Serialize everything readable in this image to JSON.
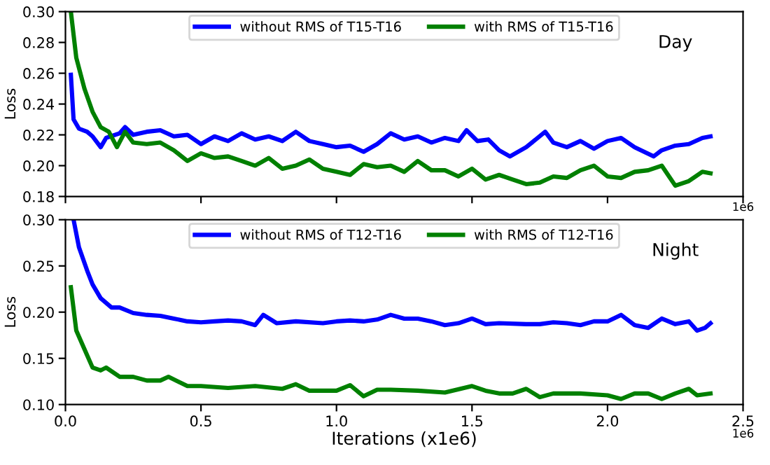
{
  "chart_data": [
    {
      "type": "line",
      "ylabel": "Loss",
      "annotations": [
        "Day",
        "1e6"
      ],
      "legend": "top",
      "tick_labels": "y",
      "grid": false,
      "xlim": [
        0,
        2.5
      ],
      "xticks": [
        {
          "value": 0,
          "label": null
        },
        {
          "value": 0.5,
          "label": null
        },
        {
          "value": 1,
          "label": null
        },
        {
          "value": 1.5,
          "label": null
        },
        {
          "value": 2,
          "label": null
        },
        {
          "value": 2.5,
          "label": null
        }
      ],
      "ylim": [
        0.18,
        0.3
      ],
      "yticks": [
        {
          "value": 0.18,
          "label": "0.18"
        },
        {
          "value": 0.2,
          "label": "0.20"
        },
        {
          "value": 0.22,
          "label": "0.22"
        },
        {
          "value": 0.24,
          "label": "0.24"
        },
        {
          "value": 0.26,
          "label": "0.26"
        },
        {
          "value": 0.28,
          "label": "0.28"
        },
        {
          "value": 0.3,
          "label": "0.30"
        }
      ],
      "series": [
        {
          "name": "without RMS of T15-T16",
          "color": "#0000ff",
          "x": [
            0.02,
            0.03,
            0.05,
            0.08,
            0.1,
            0.13,
            0.15,
            0.2,
            0.22,
            0.25,
            0.3,
            0.35,
            0.4,
            0.45,
            0.5,
            0.55,
            0.6,
            0.65,
            0.7,
            0.75,
            0.8,
            0.85,
            0.9,
            0.95,
            1.0,
            1.05,
            1.1,
            1.15,
            1.2,
            1.25,
            1.3,
            1.35,
            1.4,
            1.45,
            1.48,
            1.52,
            1.56,
            1.6,
            1.64,
            1.7,
            1.77,
            1.8,
            1.85,
            1.9,
            1.95,
            2.0,
            2.05,
            2.1,
            2.17,
            2.2,
            2.25,
            2.3,
            2.35,
            2.38
          ],
          "values": [
            0.259,
            0.23,
            0.224,
            0.222,
            0.219,
            0.212,
            0.218,
            0.221,
            0.225,
            0.22,
            0.222,
            0.223,
            0.219,
            0.22,
            0.214,
            0.219,
            0.216,
            0.221,
            0.217,
            0.219,
            0.216,
            0.222,
            0.216,
            0.214,
            0.212,
            0.213,
            0.209,
            0.214,
            0.221,
            0.217,
            0.219,
            0.215,
            0.218,
            0.216,
            0.223,
            0.216,
            0.217,
            0.21,
            0.206,
            0.212,
            0.222,
            0.215,
            0.212,
            0.216,
            0.211,
            0.216,
            0.218,
            0.212,
            0.206,
            0.21,
            0.213,
            0.214,
            0.218,
            0.219
          ]
        },
        {
          "name": "with RMS of T15-T16",
          "color": "#008000",
          "x": [
            0.02,
            0.04,
            0.07,
            0.1,
            0.13,
            0.16,
            0.19,
            0.22,
            0.25,
            0.3,
            0.35,
            0.4,
            0.45,
            0.5,
            0.55,
            0.6,
            0.65,
            0.7,
            0.75,
            0.8,
            0.85,
            0.9,
            0.95,
            1.0,
            1.05,
            1.1,
            1.15,
            1.2,
            1.25,
            1.3,
            1.35,
            1.4,
            1.45,
            1.5,
            1.55,
            1.6,
            1.65,
            1.7,
            1.75,
            1.8,
            1.85,
            1.9,
            1.95,
            2.0,
            2.05,
            2.1,
            2.15,
            2.2,
            2.25,
            2.3,
            2.35,
            2.38
          ],
          "values": [
            0.3,
            0.27,
            0.25,
            0.235,
            0.225,
            0.222,
            0.212,
            0.222,
            0.215,
            0.214,
            0.215,
            0.21,
            0.203,
            0.208,
            0.205,
            0.206,
            0.203,
            0.2,
            0.205,
            0.198,
            0.2,
            0.204,
            0.198,
            0.196,
            0.194,
            0.201,
            0.199,
            0.2,
            0.196,
            0.203,
            0.197,
            0.197,
            0.193,
            0.198,
            0.191,
            0.194,
            0.191,
            0.188,
            0.189,
            0.193,
            0.192,
            0.197,
            0.2,
            0.193,
            0.192,
            0.196,
            0.197,
            0.2,
            0.187,
            0.19,
            0.196,
            0.195
          ]
        }
      ]
    },
    {
      "type": "line",
      "xlabel": "Iterations (x1e6)",
      "ylabel": "Loss",
      "annotations": [
        "Night",
        "1e6"
      ],
      "legend": "top",
      "grid": false,
      "xlim": [
        0,
        2.5
      ],
      "xticks": [
        {
          "value": 0,
          "label": "0.0"
        },
        {
          "value": 0.5,
          "label": "0.5"
        },
        {
          "value": 1,
          "label": "1.0"
        },
        {
          "value": 1.5,
          "label": "1.5"
        },
        {
          "value": 2,
          "label": "2.0"
        },
        {
          "value": 2.5,
          "label": "2.5"
        }
      ],
      "ylim": [
        0.1,
        0.3
      ],
      "yticks": [
        {
          "value": 0.1,
          "label": "0.10"
        },
        {
          "value": 0.15,
          "label": "0.15"
        },
        {
          "value": 0.2,
          "label": "0.20"
        },
        {
          "value": 0.25,
          "label": "0.25"
        },
        {
          "value": 0.3,
          "label": "0.30"
        }
      ],
      "series": [
        {
          "name": "without RMS of T12-T16",
          "color": "#0000ff",
          "x": [
            0.03,
            0.05,
            0.08,
            0.1,
            0.13,
            0.17,
            0.2,
            0.25,
            0.3,
            0.35,
            0.4,
            0.45,
            0.5,
            0.55,
            0.6,
            0.65,
            0.7,
            0.73,
            0.78,
            0.85,
            0.95,
            1.0,
            1.05,
            1.1,
            1.15,
            1.2,
            1.25,
            1.3,
            1.35,
            1.4,
            1.45,
            1.5,
            1.55,
            1.6,
            1.7,
            1.75,
            1.8,
            1.85,
            1.9,
            1.95,
            2.0,
            2.05,
            2.1,
            2.15,
            2.2,
            2.25,
            2.3,
            2.33,
            2.36,
            2.38
          ],
          "values": [
            0.3,
            0.27,
            0.245,
            0.23,
            0.215,
            0.205,
            0.205,
            0.199,
            0.197,
            0.196,
            0.193,
            0.19,
            0.189,
            0.19,
            0.191,
            0.19,
            0.186,
            0.197,
            0.188,
            0.19,
            0.188,
            0.19,
            0.191,
            0.19,
            0.192,
            0.197,
            0.193,
            0.193,
            0.19,
            0.186,
            0.188,
            0.193,
            0.187,
            0.188,
            0.187,
            0.187,
            0.189,
            0.188,
            0.186,
            0.19,
            0.19,
            0.197,
            0.186,
            0.183,
            0.193,
            0.187,
            0.19,
            0.18,
            0.183,
            0.188
          ]
        },
        {
          "name": "with RMS of T12-T16",
          "color": "#008000",
          "x": [
            0.02,
            0.04,
            0.07,
            0.1,
            0.13,
            0.15,
            0.2,
            0.25,
            0.3,
            0.35,
            0.38,
            0.45,
            0.5,
            0.6,
            0.7,
            0.8,
            0.85,
            0.9,
            1.0,
            1.05,
            1.1,
            1.15,
            1.2,
            1.3,
            1.4,
            1.5,
            1.55,
            1.6,
            1.65,
            1.7,
            1.75,
            1.8,
            1.9,
            2.0,
            2.05,
            2.1,
            2.15,
            2.2,
            2.25,
            2.3,
            2.33,
            2.38
          ],
          "values": [
            0.227,
            0.18,
            0.16,
            0.14,
            0.137,
            0.14,
            0.13,
            0.13,
            0.126,
            0.126,
            0.13,
            0.12,
            0.12,
            0.118,
            0.12,
            0.117,
            0.122,
            0.115,
            0.115,
            0.121,
            0.109,
            0.116,
            0.116,
            0.115,
            0.113,
            0.12,
            0.115,
            0.112,
            0.112,
            0.117,
            0.108,
            0.112,
            0.112,
            0.11,
            0.106,
            0.112,
            0.112,
            0.106,
            0.112,
            0.117,
            0.11,
            0.112
          ]
        }
      ]
    }
  ]
}
